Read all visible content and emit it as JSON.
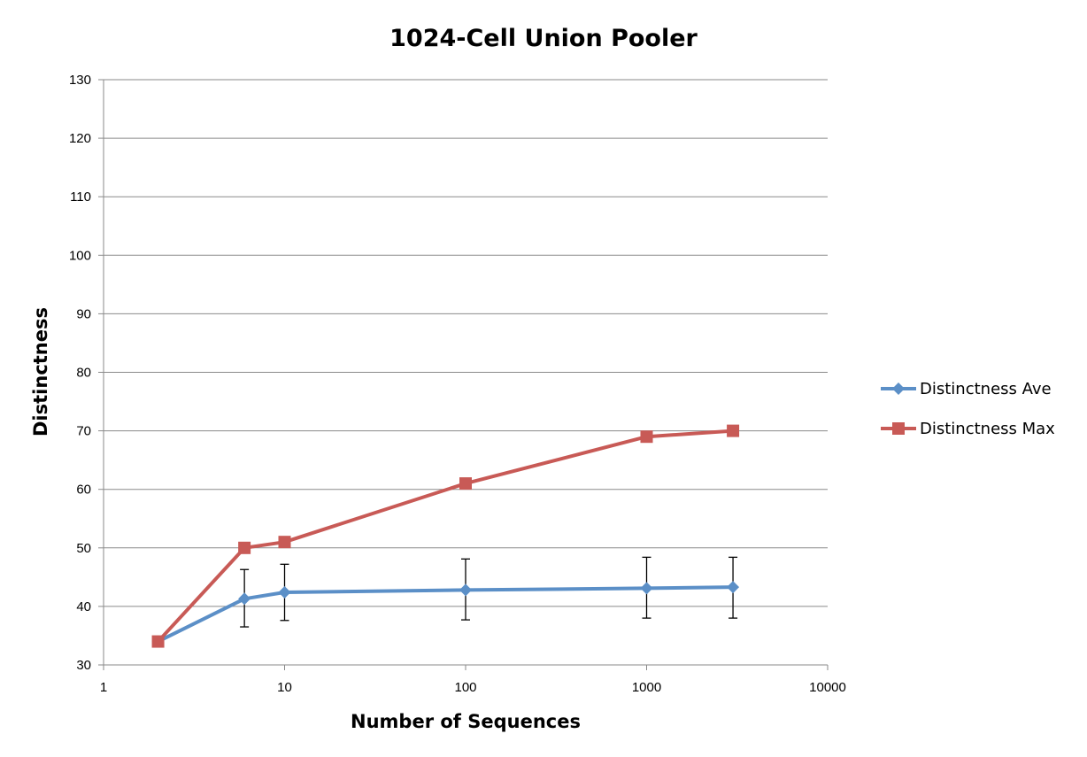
{
  "chart_data": {
    "type": "line",
    "title": "1024-Cell Union Pooler",
    "xlabel": "Number of Sequences",
    "ylabel": "Distinctness",
    "x_scale": "log",
    "xlim": [
      1,
      10000
    ],
    "ylim": [
      30,
      130
    ],
    "x_ticks": [
      1,
      10,
      100,
      1000,
      10000
    ],
    "y_ticks": [
      30,
      40,
      50,
      60,
      70,
      80,
      90,
      100,
      110,
      120,
      130
    ],
    "grid": "horizontal",
    "legend_position": "right",
    "series": [
      {
        "name": "Distinctness Ave",
        "color": "#5b8fc7",
        "marker": "diamond",
        "x": [
          2,
          6,
          10,
          100,
          1000,
          3000
        ],
        "y": [
          34,
          41.3,
          42.4,
          42.8,
          43.1,
          43.3
        ],
        "error_low": [
          34,
          36.5,
          37.6,
          37.7,
          38,
          38
        ],
        "error_high": [
          34,
          46.3,
          47.2,
          48.1,
          48.4,
          48.4
        ]
      },
      {
        "name": "Distinctness Max",
        "color": "#c85a56",
        "marker": "square",
        "x": [
          2,
          6,
          10,
          100,
          1000,
          3000
        ],
        "y": [
          34,
          50,
          51,
          61,
          69,
          70
        ]
      }
    ]
  }
}
